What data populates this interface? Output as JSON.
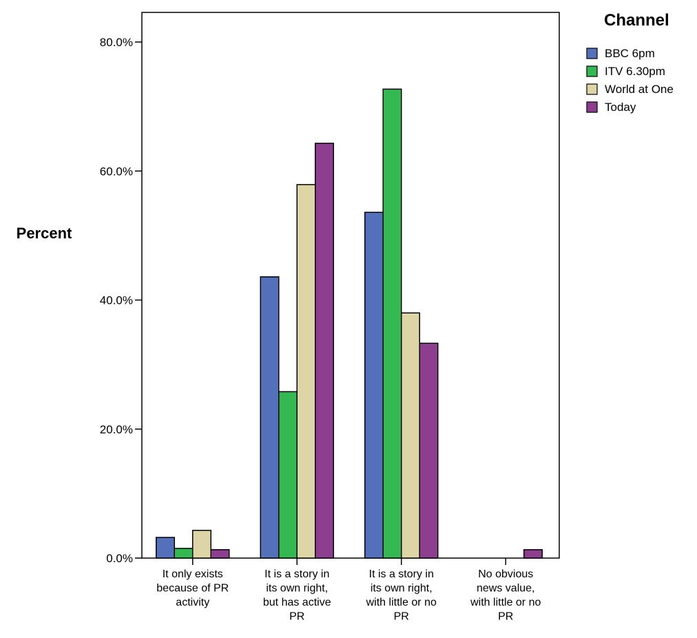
{
  "chart_data": {
    "type": "bar",
    "title": "",
    "xlabel": "",
    "ylabel": "Percent",
    "ylim": [
      0,
      80
    ],
    "yticks": [
      "0.0%",
      "20.0%",
      "40.0%",
      "60.0%",
      "80.0%"
    ],
    "grid": false,
    "legend_title": "Channel",
    "legend_position": "top-right",
    "categories": [
      [
        "It only exists",
        "because of PR",
        "activity"
      ],
      [
        "It is a story in",
        "its own right,",
        "but has active",
        "PR"
      ],
      [
        "It is a story in",
        "its own right,",
        "with little or no",
        "PR"
      ],
      [
        "No obvious",
        "news value,",
        "with little or no",
        "PR"
      ]
    ],
    "series": [
      {
        "name": "BBC 6pm",
        "color": "#5470bb",
        "values": [
          3.2,
          43.6,
          53.6,
          0
        ]
      },
      {
        "name": "ITV 6.30pm",
        "color": "#34b952",
        "values": [
          1.5,
          25.8,
          72.7,
          0
        ]
      },
      {
        "name": "World at One",
        "color": "#ddd5a6",
        "values": [
          4.3,
          57.9,
          38.0,
          0
        ]
      },
      {
        "name": "Today",
        "color": "#8e3e8f",
        "values": [
          1.3,
          64.3,
          33.3,
          1.3
        ]
      }
    ]
  }
}
